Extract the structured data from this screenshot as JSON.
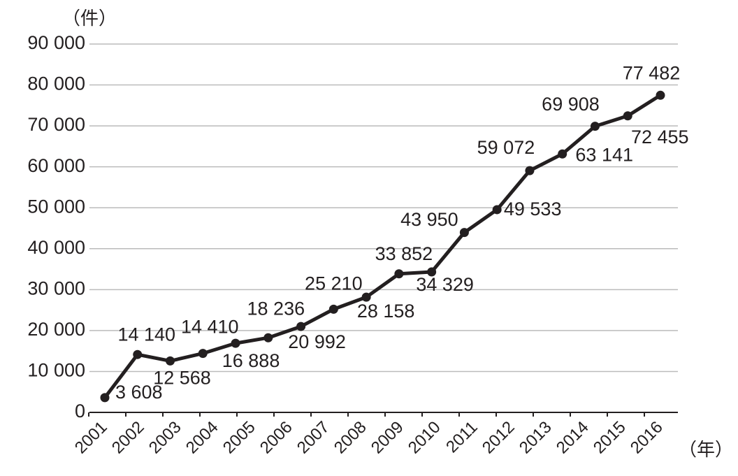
{
  "chart_data": {
    "type": "line",
    "y_label": "（件）",
    "x_label": "（年）",
    "categories": [
      "2001",
      "2002",
      "2003",
      "2004",
      "2005",
      "2006",
      "2007",
      "2008",
      "2009",
      "2010",
      "2011",
      "2012",
      "2013",
      "2014",
      "2015",
      "2016",
      null,
      null
    ],
    "series": [
      {
        "color": "#231f20",
        "values": [
          3608,
          14140,
          12568,
          14410,
          16888,
          18236,
          20992,
          25210,
          28158,
          33852,
          34329,
          43950,
          49533,
          59072,
          63141,
          69908,
          72455,
          77482
        ],
        "value_labels": [
          "3 608",
          "14 140",
          "12 568",
          "14 410",
          "16 888",
          "18 236",
          "20 992",
          "25 210",
          "28 158",
          "33 852",
          "34 329",
          "43 950",
          "49 533",
          "59 072",
          "63 141",
          "69 908",
          "72 455",
          "77 482"
        ]
      }
    ],
    "ylim": [
      0,
      90000
    ],
    "yticks": [
      0,
      {
        "value": 10000,
        "label": "10 000"
      },
      {
        "value": 20000,
        "label": "20 000"
      },
      {
        "value": 30000,
        "label": "30 000"
      },
      {
        "value": 40000,
        "label": "40 000"
      },
      {
        "value": 50000,
        "label": "50 000"
      },
      {
        "value": 60000,
        "label": "60 000"
      },
      {
        "value": 70000,
        "label": "70 000"
      },
      {
        "value": 80000,
        "label": "80 000"
      },
      {
        "value": 90000,
        "label": "90 000"
      }
    ],
    "grid": true
  }
}
